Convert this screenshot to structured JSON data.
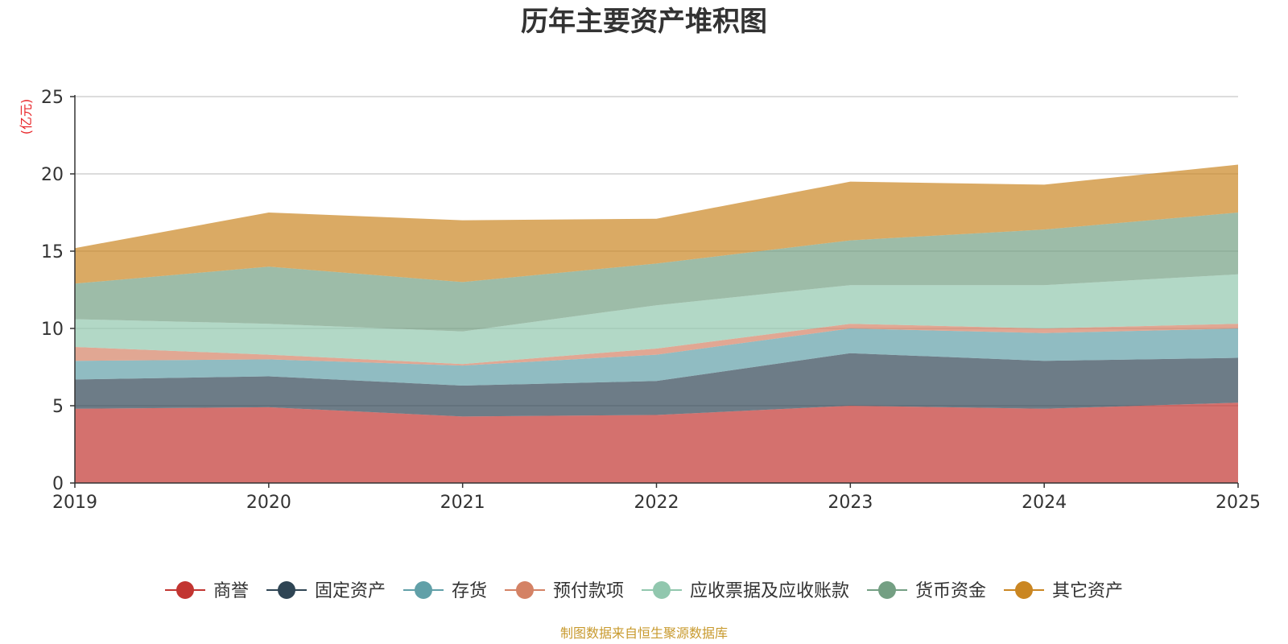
{
  "chart_data": {
    "type": "area",
    "stacked": true,
    "title": "历年主要资产堆积图",
    "ylabel": "(亿元)",
    "xlabel": "",
    "x": [
      "2019",
      "2020",
      "2021",
      "2022",
      "2023",
      "2024",
      "2025"
    ],
    "ylim": [
      0,
      25
    ],
    "yticks": [
      "0",
      "5",
      "10",
      "15",
      "20",
      "25"
    ],
    "grid": true,
    "legend_position": "bottom",
    "series": [
      {
        "name": "商誉",
        "color": "#c23531",
        "values": [
          4.8,
          4.9,
          4.3,
          4.4,
          5.0,
          4.8,
          5.2
        ]
      },
      {
        "name": "固定资产",
        "color": "#2f4554",
        "values": [
          1.9,
          2.0,
          2.0,
          2.2,
          3.4,
          3.1,
          2.9
        ]
      },
      {
        "name": "存货",
        "color": "#61a0a8",
        "values": [
          1.2,
          1.1,
          1.3,
          1.7,
          1.6,
          1.8,
          1.9
        ]
      },
      {
        "name": "预付款项",
        "color": "#d48265",
        "values": [
          0.9,
          0.3,
          0.1,
          0.4,
          0.3,
          0.3,
          0.3
        ]
      },
      {
        "name": "应收票据及应收账款",
        "color": "#91c7ae",
        "values": [
          1.8,
          2.0,
          2.1,
          2.8,
          2.5,
          2.8,
          3.2
        ]
      },
      {
        "name": "货币资金",
        "color": "#749f83",
        "values": [
          2.3,
          3.7,
          3.2,
          2.7,
          2.9,
          3.6,
          4.0
        ]
      },
      {
        "name": "其它资产",
        "color": "#ca8622",
        "values": [
          2.3,
          3.5,
          4.0,
          2.9,
          3.8,
          2.9,
          3.1
        ]
      }
    ],
    "source": "制图数据来自恒生聚源数据库"
  }
}
